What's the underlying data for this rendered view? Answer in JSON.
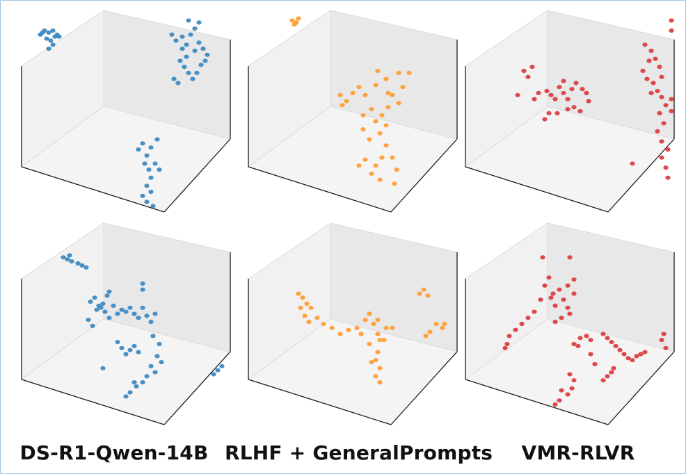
{
  "labels": [
    "DS-R1-Qwen-14B",
    "RLHF + GeneralPrompts",
    "VMR-RLVR"
  ],
  "colors": {
    "blue": "#3a87c0",
    "orange": "#fe9b2f",
    "red": "#db3b3c"
  },
  "chart_data": [
    {
      "type": "scatter",
      "projection": "3d",
      "row": 1,
      "column": 1,
      "color": "#3a87c0",
      "points": [
        [
          0.09,
          0.12
        ],
        [
          0.11,
          0.1
        ],
        [
          0.13,
          0.11
        ],
        [
          0.15,
          0.1
        ],
        [
          0.17,
          0.12
        ],
        [
          0.12,
          0.14
        ],
        [
          0.14,
          0.15
        ],
        [
          0.16,
          0.13
        ],
        [
          0.13,
          0.19
        ],
        [
          0.15,
          0.17
        ],
        [
          0.18,
          0.13
        ],
        [
          0.1,
          0.11
        ],
        [
          0.72,
          0.12
        ],
        [
          0.74,
          0.15
        ],
        [
          0.77,
          0.13
        ],
        [
          0.79,
          0.17
        ],
        [
          0.81,
          0.12
        ],
        [
          0.83,
          0.2
        ],
        [
          0.85,
          0.16
        ],
        [
          0.87,
          0.19
        ],
        [
          0.89,
          0.22
        ],
        [
          0.76,
          0.25
        ],
        [
          0.78,
          0.28
        ],
        [
          0.8,
          0.31
        ],
        [
          0.82,
          0.34
        ],
        [
          0.75,
          0.36
        ],
        [
          0.73,
          0.34
        ],
        [
          0.86,
          0.27
        ],
        [
          0.88,
          0.25
        ],
        [
          0.84,
          0.31
        ],
        [
          0.79,
          0.23
        ],
        [
          0.77,
          0.19
        ],
        [
          0.83,
          0.09
        ],
        [
          0.85,
          0.06
        ],
        [
          0.8,
          0.05
        ],
        [
          0.56,
          0.69
        ],
        [
          0.58,
          0.66
        ],
        [
          0.6,
          0.72
        ],
        [
          0.62,
          0.68
        ],
        [
          0.59,
          0.76
        ],
        [
          0.61,
          0.79
        ],
        [
          0.64,
          0.76
        ],
        [
          0.66,
          0.79
        ],
        [
          0.62,
          0.83
        ],
        [
          0.6,
          0.87
        ],
        [
          0.58,
          0.92
        ],
        [
          0.6,
          0.95
        ],
        [
          0.63,
          0.97
        ],
        [
          0.62,
          0.9
        ],
        [
          0.65,
          0.64
        ]
      ]
    },
    {
      "type": "scatter",
      "projection": "3d",
      "row": 1,
      "column": 2,
      "color": "#fe9b2f",
      "points": [
        [
          0.21,
          0.05
        ],
        [
          0.22,
          0.07
        ],
        [
          0.24,
          0.04
        ],
        [
          0.23,
          0.06
        ],
        [
          0.44,
          0.42
        ],
        [
          0.45,
          0.47
        ],
        [
          0.47,
          0.45
        ],
        [
          0.5,
          0.41
        ],
        [
          0.53,
          0.38
        ],
        [
          0.56,
          0.42
        ],
        [
          0.61,
          0.37
        ],
        [
          0.66,
          0.34
        ],
        [
          0.69,
          0.42
        ],
        [
          0.72,
          0.46
        ],
        [
          0.74,
          0.38
        ],
        [
          0.77,
          0.31
        ],
        [
          0.72,
          0.31
        ],
        [
          0.67,
          0.48
        ],
        [
          0.64,
          0.52
        ],
        [
          0.61,
          0.55
        ],
        [
          0.59,
          0.49
        ],
        [
          0.63,
          0.61
        ],
        [
          0.58,
          0.64
        ],
        [
          0.55,
          0.59
        ],
        [
          0.66,
          0.67
        ],
        [
          0.69,
          0.73
        ],
        [
          0.71,
          0.79
        ],
        [
          0.64,
          0.73
        ],
        [
          0.61,
          0.77
        ],
        [
          0.56,
          0.74
        ],
        [
          0.53,
          0.77
        ],
        [
          0.59,
          0.81
        ],
        [
          0.63,
          0.84
        ],
        [
          0.7,
          0.86
        ],
        [
          0.55,
          0.52
        ],
        [
          0.66,
          0.57
        ],
        [
          0.67,
          0.41
        ],
        [
          0.62,
          0.3
        ]
      ]
    },
    {
      "type": "scatter",
      "projection": "3d",
      "row": 1,
      "column": 3,
      "color": "#db3b3c",
      "points": [
        [
          0.28,
          0.3
        ],
        [
          0.3,
          0.33
        ],
        [
          0.32,
          0.28
        ],
        [
          0.25,
          0.42
        ],
        [
          0.33,
          0.44
        ],
        [
          0.35,
          0.41
        ],
        [
          0.39,
          0.4
        ],
        [
          0.41,
          0.42
        ],
        [
          0.43,
          0.44
        ],
        [
          0.45,
          0.38
        ],
        [
          0.47,
          0.41
        ],
        [
          0.49,
          0.44
        ],
        [
          0.51,
          0.39
        ],
        [
          0.53,
          0.36
        ],
        [
          0.56,
          0.39
        ],
        [
          0.58,
          0.41
        ],
        [
          0.44,
          0.51
        ],
        [
          0.49,
          0.49
        ],
        [
          0.52,
          0.48
        ],
        [
          0.55,
          0.5
        ],
        [
          0.38,
          0.54
        ],
        [
          0.4,
          0.51
        ],
        [
          0.47,
          0.35
        ],
        [
          0.59,
          0.45
        ],
        [
          0.86,
          0.17
        ],
        [
          0.89,
          0.2
        ],
        [
          0.91,
          0.24
        ],
        [
          0.93,
          0.28
        ],
        [
          0.94,
          0.33
        ],
        [
          0.9,
          0.36
        ],
        [
          0.92,
          0.4
        ],
        [
          0.94,
          0.43
        ],
        [
          0.96,
          0.47
        ],
        [
          0.93,
          0.51
        ],
        [
          0.95,
          0.56
        ],
        [
          0.92,
          0.6
        ],
        [
          0.94,
          0.65
        ],
        [
          0.97,
          0.69
        ],
        [
          0.94,
          0.73
        ],
        [
          0.96,
          0.78
        ],
        [
          0.97,
          0.83
        ],
        [
          0.85,
          0.3
        ],
        [
          0.87,
          0.34
        ],
        [
          0.88,
          0.25
        ],
        [
          0.99,
          0.44
        ],
        [
          1.02,
          0.5
        ],
        [
          0.8,
          0.76
        ],
        [
          0.99,
          0.1
        ],
        [
          0.99,
          0.05
        ],
        [
          0.89,
          0.41
        ]
      ]
    },
    {
      "type": "scatter",
      "projection": "3d",
      "row": 2,
      "column": 1,
      "color": "#3a87c0",
      "points": [
        [
          0.2,
          0.17
        ],
        [
          0.22,
          0.18
        ],
        [
          0.24,
          0.19
        ],
        [
          0.27,
          0.2
        ],
        [
          0.29,
          0.21
        ],
        [
          0.31,
          0.22
        ],
        [
          0.23,
          0.16
        ],
        [
          0.33,
          0.39
        ],
        [
          0.35,
          0.37
        ],
        [
          0.36,
          0.43
        ],
        [
          0.37,
          0.41
        ],
        [
          0.38,
          0.42
        ],
        [
          0.39,
          0.4
        ],
        [
          0.4,
          0.44
        ],
        [
          0.41,
          0.36
        ],
        [
          0.42,
          0.34
        ],
        [
          0.42,
          0.47
        ],
        [
          0.44,
          0.41
        ],
        [
          0.46,
          0.45
        ],
        [
          0.48,
          0.43
        ],
        [
          0.5,
          0.44
        ],
        [
          0.52,
          0.42
        ],
        [
          0.54,
          0.45
        ],
        [
          0.56,
          0.47
        ],
        [
          0.58,
          0.42
        ],
        [
          0.6,
          0.46
        ],
        [
          0.62,
          0.49
        ],
        [
          0.64,
          0.45
        ],
        [
          0.58,
          0.33
        ],
        [
          0.58,
          0.3
        ],
        [
          0.32,
          0.48
        ],
        [
          0.34,
          0.51
        ],
        [
          0.46,
          0.59
        ],
        [
          0.48,
          0.62
        ],
        [
          0.5,
          0.65
        ],
        [
          0.52,
          0.63
        ],
        [
          0.54,
          0.61
        ],
        [
          0.56,
          0.64
        ],
        [
          0.63,
          0.56
        ],
        [
          0.66,
          0.6
        ],
        [
          0.65,
          0.66
        ],
        [
          0.67,
          0.69
        ],
        [
          0.64,
          0.74
        ],
        [
          0.62,
          0.71
        ],
        [
          0.6,
          0.76
        ],
        [
          0.58,
          0.79
        ],
        [
          0.55,
          0.81
        ],
        [
          0.52,
          0.84
        ],
        [
          0.5,
          0.86
        ],
        [
          0.54,
          0.79
        ],
        [
          0.39,
          0.72
        ],
        [
          0.92,
          0.75
        ],
        [
          0.94,
          0.73
        ],
        [
          0.96,
          0.71
        ]
      ]
    },
    {
      "type": "scatter",
      "projection": "3d",
      "row": 2,
      "column": 2,
      "color": "#fe9b2f",
      "points": [
        [
          0.24,
          0.35
        ],
        [
          0.26,
          0.37
        ],
        [
          0.28,
          0.4
        ],
        [
          0.3,
          0.42
        ],
        [
          0.27,
          0.46
        ],
        [
          0.29,
          0.49
        ],
        [
          0.33,
          0.47
        ],
        [
          0.36,
          0.5
        ],
        [
          0.4,
          0.52
        ],
        [
          0.44,
          0.55
        ],
        [
          0.48,
          0.53
        ],
        [
          0.52,
          0.52
        ],
        [
          0.56,
          0.48
        ],
        [
          0.54,
          0.55
        ],
        [
          0.6,
          0.5
        ],
        [
          0.62,
          0.55
        ],
        [
          0.65,
          0.58
        ],
        [
          0.66,
          0.52
        ],
        [
          0.62,
          0.48
        ],
        [
          0.58,
          0.45
        ],
        [
          0.58,
          0.6
        ],
        [
          0.62,
          0.64
        ],
        [
          0.61,
          0.68
        ],
        [
          0.63,
          0.72
        ],
        [
          0.61,
          0.76
        ],
        [
          0.63,
          0.79
        ],
        [
          0.59,
          0.69
        ],
        [
          0.63,
          0.58
        ],
        [
          0.69,
          0.52
        ],
        [
          0.25,
          0.42
        ],
        [
          0.82,
          0.35
        ],
        [
          0.84,
          0.33
        ],
        [
          0.86,
          0.36
        ],
        [
          0.9,
          0.5
        ],
        [
          0.93,
          0.52
        ],
        [
          0.94,
          0.5
        ],
        [
          0.85,
          0.56
        ],
        [
          0.87,
          0.54
        ]
      ]
    },
    {
      "type": "scatter",
      "projection": "3d",
      "row": 2,
      "column": 3,
      "color": "#db3b3c",
      "points": [
        [
          0.37,
          0.17
        ],
        [
          0.5,
          0.17
        ],
        [
          0.36,
          0.38
        ],
        [
          0.38,
          0.31
        ],
        [
          0.4,
          0.27
        ],
        [
          0.42,
          0.35
        ],
        [
          0.45,
          0.33
        ],
        [
          0.41,
          0.37
        ],
        [
          0.43,
          0.41
        ],
        [
          0.47,
          0.38
        ],
        [
          0.49,
          0.42
        ],
        [
          0.5,
          0.45
        ],
        [
          0.46,
          0.47
        ],
        [
          0.43,
          0.49
        ],
        [
          0.33,
          0.44
        ],
        [
          0.3,
          0.47
        ],
        [
          0.27,
          0.5
        ],
        [
          0.24,
          0.53
        ],
        [
          0.21,
          0.56
        ],
        [
          0.2,
          0.6
        ],
        [
          0.19,
          0.62
        ],
        [
          0.52,
          0.35
        ],
        [
          0.49,
          0.31
        ],
        [
          0.52,
          0.28
        ],
        [
          0.55,
          0.57
        ],
        [
          0.58,
          0.56
        ],
        [
          0.6,
          0.58
        ],
        [
          0.52,
          0.6
        ],
        [
          0.54,
          0.61
        ],
        [
          0.66,
          0.55
        ],
        [
          0.68,
          0.57
        ],
        [
          0.7,
          0.59
        ],
        [
          0.72,
          0.61
        ],
        [
          0.74,
          0.63
        ],
        [
          0.76,
          0.65
        ],
        [
          0.78,
          0.67
        ],
        [
          0.8,
          0.68
        ],
        [
          0.82,
          0.66
        ],
        [
          0.84,
          0.65
        ],
        [
          0.86,
          0.64
        ],
        [
          0.66,
          0.78
        ],
        [
          0.68,
          0.76
        ],
        [
          0.7,
          0.74
        ],
        [
          0.71,
          0.72
        ],
        [
          0.5,
          0.75
        ],
        [
          0.52,
          0.78
        ],
        [
          0.51,
          0.82
        ],
        [
          0.49,
          0.85
        ],
        [
          0.45,
          0.88
        ],
        [
          0.43,
          0.9
        ],
        [
          0.46,
          0.83
        ],
        [
          0.6,
          0.65
        ],
        [
          0.62,
          0.7
        ],
        [
          0.95,
          0.55
        ],
        [
          0.96,
          0.62
        ],
        [
          0.94,
          0.58
        ]
      ]
    }
  ]
}
